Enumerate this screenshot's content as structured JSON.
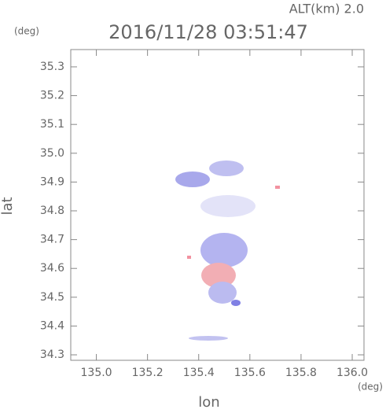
{
  "chart_data": {
    "type": "map",
    "altitude_label": "ALT(km) 2.0",
    "title": "2016/11/28 03:51:47",
    "y_unit": "(deg)",
    "x_unit": "(deg)",
    "ylabel": "lat",
    "xlabel": "lon",
    "xlim": [
      134.9,
      136.046
    ],
    "ylim": [
      34.281,
      35.36
    ],
    "xticks": [
      {
        "value": 135,
        "label": "135.0"
      },
      135.2,
      135.4,
      135.6,
      135.8,
      {
        "value": 136,
        "label": "136.0"
      }
    ],
    "yticks": [
      34.3,
      34.4,
      34.5,
      34.6,
      34.7,
      34.8,
      34.9,
      {
        "value": 35,
        "label": "35.0"
      },
      35.1,
      35.2,
      35.3
    ]
  }
}
